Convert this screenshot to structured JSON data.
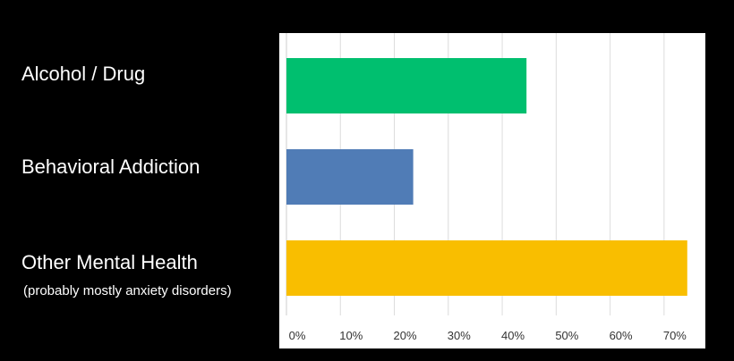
{
  "chart_data": {
    "type": "bar",
    "orientation": "horizontal",
    "categories": [
      "Alcohol / Drug",
      "Behavioral Addiction",
      "Other Mental Health"
    ],
    "category_sublabels": [
      "",
      "",
      "(probably mostly anxiety disorders)"
    ],
    "values": [
      44.5,
      23.5,
      74.3
    ],
    "colors": [
      "#00bf6f",
      "#507cb6",
      "#f9be00"
    ],
    "xlim": [
      0,
      75
    ],
    "xticks": [
      0,
      10,
      20,
      30,
      40,
      50,
      60,
      70
    ],
    "tick_suffix": "%",
    "grid": true,
    "title": "",
    "xlabel": "",
    "ylabel": ""
  },
  "colors": {
    "page_background": "#000000",
    "plot_background": "#ffffff",
    "gridline": "#dcdcdc",
    "label_text": "#ffffff",
    "tick_text": "#333333"
  }
}
